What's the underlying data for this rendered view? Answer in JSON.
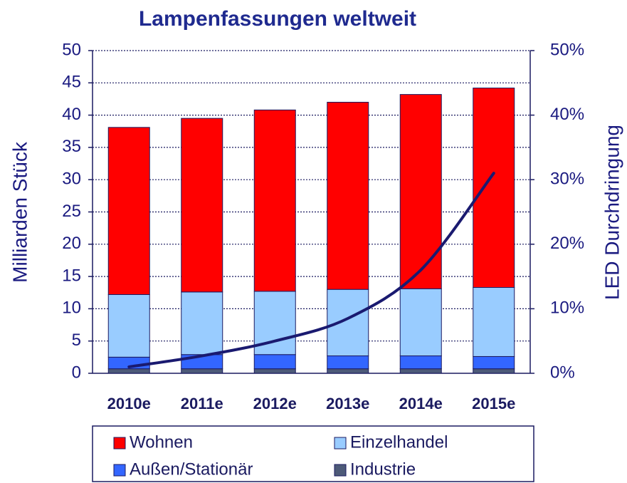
{
  "chart_data": {
    "type": "bar",
    "stacked": true,
    "title": "Lampenfassungen weltweit",
    "ylabel": "Milliarden Stück",
    "y2label": "LED Durchdringung",
    "categories": [
      "2010e",
      "2011e",
      "2012e",
      "2013e",
      "2014e",
      "2015e"
    ],
    "series": [
      {
        "name": "Industrie",
        "color": "#4d5a78",
        "values": [
          0.7,
          0.7,
          0.7,
          0.7,
          0.7,
          0.7
        ]
      },
      {
        "name": "Außen/Stationär",
        "color": "#3366ff",
        "values": [
          1.8,
          2.2,
          2.2,
          2.0,
          2.0,
          1.9
        ]
      },
      {
        "name": "Einzelhandel",
        "color": "#99ccff",
        "values": [
          9.7,
          9.7,
          9.8,
          10.3,
          10.4,
          10.7
        ]
      },
      {
        "name": "Wohnen",
        "color": "#ff0000",
        "values": [
          25.9,
          26.9,
          28.1,
          29.0,
          30.1,
          30.9
        ]
      },
      {
        "type": "line",
        "axis": "y2",
        "color": "#1a1a70",
        "values": [
          1,
          2.7,
          5,
          8.5,
          16,
          31
        ]
      }
    ],
    "ylim": [
      0,
      50
    ],
    "yticks": [
      0,
      5,
      10,
      15,
      20,
      25,
      30,
      35,
      40,
      45,
      50
    ],
    "y2lim": [
      0,
      50
    ],
    "y2ticks": [
      {
        "value": 0,
        "label": "0%"
      },
      {
        "value": 10,
        "label": "10%"
      },
      {
        "value": 20,
        "label": "20%"
      },
      {
        "value": 30,
        "label": "30%"
      },
      {
        "value": 40,
        "label": "40%"
      },
      {
        "value": 50,
        "label": "50%"
      }
    ],
    "grid": true
  }
}
